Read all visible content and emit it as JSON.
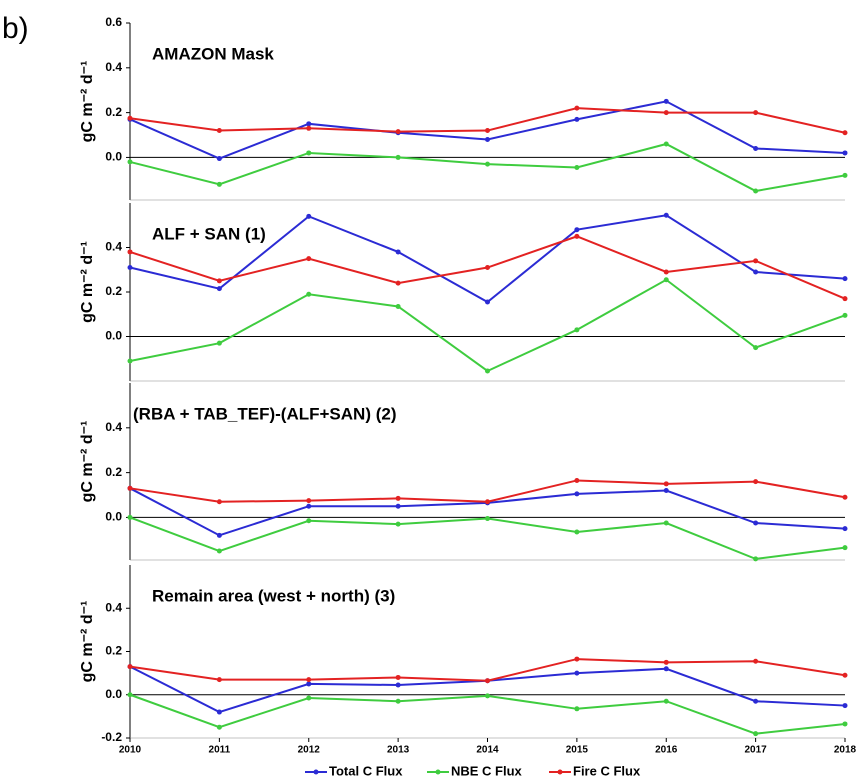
{
  "panel_label": "b)",
  "chart_data": [
    {
      "type": "line",
      "title": "AMAZON Mask",
      "ylabel": "gC m⁻² d⁻¹",
      "x": [
        2010,
        2011,
        2012,
        2013,
        2014,
        2015,
        2016,
        2017,
        2018
      ],
      "xlim": [
        2010,
        2018
      ],
      "ylim": [
        -0.19,
        0.6
      ],
      "yticks": [
        {
          "value": 0,
          "label": "0.0"
        },
        0.2,
        0.4,
        0.6
      ],
      "zero_line": true,
      "series": [
        {
          "color": "#2b2bd4",
          "values": [
            0.17,
            -0.005,
            0.15,
            0.11,
            0.08,
            0.17,
            0.25,
            0.04,
            0.02
          ]
        },
        {
          "color": "#3fcc3f",
          "values": [
            -0.02,
            -0.12,
            0.02,
            0.0,
            -0.03,
            -0.045,
            0.06,
            -0.15,
            -0.08
          ]
        },
        {
          "color": "#e32222",
          "values": [
            0.175,
            0.12,
            0.13,
            0.115,
            0.12,
            0.22,
            0.2,
            0.2,
            0.11
          ]
        }
      ]
    },
    {
      "type": "line",
      "title": "ALF + SAN  (1)",
      "ylabel": "gC m⁻² d⁻¹",
      "x": [
        2010,
        2011,
        2012,
        2013,
        2014,
        2015,
        2016,
        2017,
        2018
      ],
      "xlim": [
        2010,
        2018
      ],
      "ylim": [
        -0.2,
        0.6
      ],
      "yticks": [
        {
          "value": 0,
          "label": "0.0"
        },
        0.2,
        0.4
      ],
      "zero_line": true,
      "series": [
        {
          "color": "#2b2bd4",
          "values": [
            0.31,
            0.215,
            0.54,
            0.38,
            0.155,
            0.48,
            0.545,
            0.29,
            0.26
          ]
        },
        {
          "color": "#3fcc3f",
          "values": [
            -0.11,
            -0.03,
            0.19,
            0.135,
            -0.155,
            0.03,
            0.255,
            -0.05,
            0.095
          ]
        },
        {
          "color": "#e32222",
          "values": [
            0.38,
            0.25,
            0.35,
            0.24,
            0.31,
            0.45,
            0.29,
            0.34,
            0.17
          ]
        }
      ]
    },
    {
      "type": "line",
      "title": "(RBA + TAB_TEF)-(ALF+SAN)  (2)",
      "ylabel": "gC m⁻² d⁻¹",
      "x": [
        2010,
        2011,
        2012,
        2013,
        2014,
        2015,
        2016,
        2017,
        2018
      ],
      "xlim": [
        2010,
        2018
      ],
      "ylim": [
        -0.19,
        0.6
      ],
      "yticks": [
        {
          "value": 0,
          "label": "0.0"
        },
        0.2,
        0.4
      ],
      "zero_line": true,
      "series": [
        {
          "color": "#2b2bd4",
          "values": [
            0.13,
            -0.08,
            0.05,
            0.05,
            0.065,
            0.105,
            0.12,
            -0.025,
            -0.05
          ]
        },
        {
          "color": "#3fcc3f",
          "values": [
            0.0,
            -0.15,
            -0.015,
            -0.03,
            -0.005,
            -0.065,
            -0.025,
            -0.185,
            -0.135
          ]
        },
        {
          "color": "#e32222",
          "values": [
            0.13,
            0.07,
            0.075,
            0.085,
            0.07,
            0.165,
            0.15,
            0.16,
            0.09
          ]
        }
      ]
    },
    {
      "type": "line",
      "title": "Remain area (west + north)  (3)",
      "ylabel": "gC m⁻² d⁻¹",
      "x": [
        2010,
        2011,
        2012,
        2013,
        2014,
        2015,
        2016,
        2017,
        2018
      ],
      "xlim": [
        2010,
        2018
      ],
      "xticks": [
        2010,
        2011,
        2012,
        2013,
        2014,
        2015,
        2016,
        2017,
        2018
      ],
      "ylim": [
        -0.2,
        0.6
      ],
      "yticks": [
        -0.2,
        {
          "value": 0,
          "label": "0.0"
        },
        0.2,
        0.4
      ],
      "zero_line": true,
      "series": [
        {
          "name": "Total C Flux",
          "color": "#2b2bd4",
          "values": [
            0.13,
            -0.08,
            0.05,
            0.045,
            0.065,
            0.1,
            0.12,
            -0.03,
            -0.05
          ]
        },
        {
          "name": "NBE C Flux",
          "color": "#3fcc3f",
          "values": [
            0.0,
            -0.15,
            -0.015,
            -0.03,
            -0.005,
            -0.065,
            -0.03,
            -0.18,
            -0.135
          ]
        },
        {
          "name": "Fire C Flux",
          "color": "#e32222",
          "values": [
            0.13,
            0.07,
            0.07,
            0.08,
            0.065,
            0.165,
            0.15,
            0.155,
            0.09
          ]
        }
      ]
    }
  ]
}
